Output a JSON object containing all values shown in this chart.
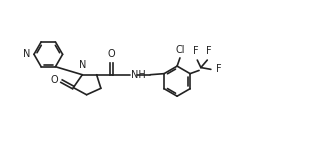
{
  "bg_color": "#ffffff",
  "line_color": "#222222",
  "line_width": 1.2,
  "font_size": 7.0,
  "figsize": [
    3.22,
    1.48
  ],
  "dpi": 100,
  "xlim": [
    0,
    9.0
  ],
  "ylim": [
    0,
    2.4
  ]
}
